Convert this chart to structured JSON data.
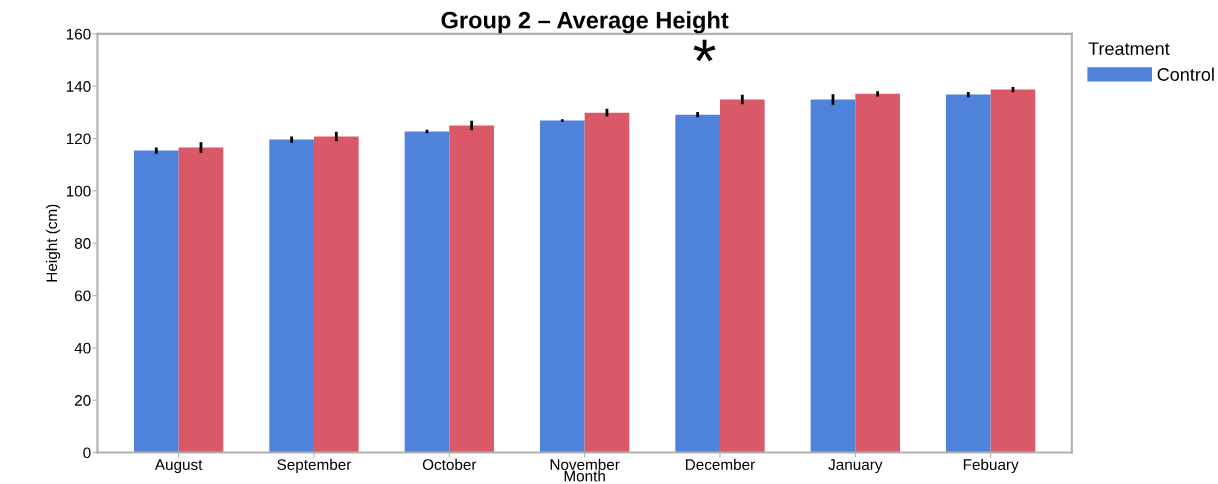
{
  "chart_data": {
    "type": "bar",
    "title": "Group 2 – Average Height",
    "xlabel": "Month",
    "ylabel": "Height (cm)",
    "legend_title": "Treatment",
    "categories": [
      "August",
      "September",
      "October",
      "November",
      "December",
      "January",
      "Febuary"
    ],
    "series": [
      {
        "name": "Control",
        "color": "#4f83db",
        "values": [
          115.4,
          119.6,
          122.7,
          126.9,
          129.1,
          134.9,
          136.8
        ],
        "errors": [
          1.2,
          1.2,
          0.7,
          0.5,
          1.0,
          2.0,
          1.0
        ]
      },
      {
        "color": "#db5868",
        "values": [
          116.6,
          120.8,
          125.0,
          129.9,
          134.9,
          137.1,
          138.7
        ],
        "errors": [
          2.0,
          1.8,
          1.8,
          1.5,
          1.8,
          1.0,
          1.0
        ]
      }
    ],
    "annotations": [
      "*"
    ],
    "ylim": [
      0,
      160
    ],
    "yticks": [
      0,
      20,
      40,
      60,
      80,
      100,
      120,
      140,
      160
    ],
    "grid": false,
    "legend": "top right"
  }
}
